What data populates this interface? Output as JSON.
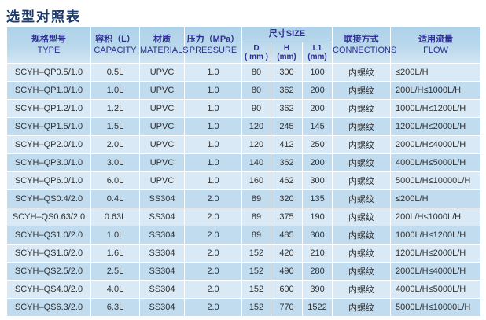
{
  "page": {
    "title": "选型对照表"
  },
  "colors": {
    "title_text": "#1a3a6e",
    "header_text": "#2e2f92",
    "header_bg_top": "#aed2e9",
    "header_bg_bottom": "#d3e6f3",
    "row_odd_bg": "#d9eaf6",
    "row_even_bg": "#c2dcef",
    "body_text": "#303030",
    "page_bg": "#ffffff"
  },
  "table": {
    "header": {
      "type": {
        "zh": "规格型号",
        "en": "TYPE"
      },
      "capacity": {
        "zh": "容积（L）",
        "en": "CAPACITY"
      },
      "materials": {
        "zh": "材质",
        "en": "MATERIALS"
      },
      "pressure": {
        "zh": "压力（MPa）",
        "en": "PRESSURE"
      },
      "size": {
        "label": "尺寸SIZE",
        "sub": [
          {
            "label": "D",
            "unit": "( mm )"
          },
          {
            "label": "H",
            "unit": "(mm)"
          },
          {
            "label": "L1",
            "unit": "(mm)"
          }
        ]
      },
      "connections": {
        "zh": "联接方式",
        "en": "CONNECTIONS"
      },
      "flow": {
        "zh": "适用流量",
        "en": "FLOW"
      }
    },
    "rows": [
      [
        "SCYH–QP0.5/1.0",
        "0.5L",
        "UPVC",
        "1.0",
        "80",
        "300",
        "100",
        "内螺纹",
        "≤200L/H"
      ],
      [
        "SCYH–QP1.0/1.0",
        "1.0L",
        "UPVC",
        "1.0",
        "80",
        "362",
        "200",
        "内螺纹",
        "200L/H≤1000L/H"
      ],
      [
        "SCYH–QP1.2/1.0",
        "1.2L",
        "UPVC",
        "1.0",
        "90",
        "362",
        "200",
        "内螺纹",
        "1000L/H≤1200L/H"
      ],
      [
        "SCYH–QP1.5/1.0",
        "1.5L",
        "UPVC",
        "1.0",
        "120",
        "245",
        "145",
        "内螺纹",
        "1200L/H≤2000L/H"
      ],
      [
        "SCYH–QP2.0/1.0",
        "2.0L",
        "UPVC",
        "1.0",
        "120",
        "412",
        "250",
        "内螺纹",
        "2000L/H≤4000L/H"
      ],
      [
        "SCYH–QP3.0/1.0",
        "3.0L",
        "UPVC",
        "1.0",
        "140",
        "362",
        "200",
        "内螺纹",
        "4000L/H≤5000L/H"
      ],
      [
        "SCYH–QP6.0/1.0",
        "6.0L",
        "UPVC",
        "1.0",
        "160",
        "462",
        "300",
        "内螺纹",
        "5000L/H≤10000L/H"
      ],
      [
        "SCYH–QS0.4/2.0",
        "0.4L",
        "SS304",
        "2.0",
        "89",
        "320",
        "135",
        "内螺纹",
        "≤200L/H"
      ],
      [
        "SCYH–QS0.63/2.0",
        "0.63L",
        "SS304",
        "2.0",
        "89",
        "375",
        "190",
        "内螺纹",
        "200L/H≤1000L/H"
      ],
      [
        "SCYH–QS1.0/2.0",
        "1.0L",
        "SS304",
        "2.0",
        "89",
        "485",
        "300",
        "内螺纹",
        "1000L/H≤1200L/H"
      ],
      [
        "SCYH–QS1.6/2.0",
        "1.6L",
        "SS304",
        "2.0",
        "152",
        "420",
        "210",
        "内螺纹",
        "1200L/H≤2000L/H"
      ],
      [
        "SCYH–QS2.5/2.0",
        "2.5L",
        "SS304",
        "2.0",
        "152",
        "490",
        "280",
        "内螺纹",
        "2000L/H≤4000L/H"
      ],
      [
        "SCYH–QS4.0/2.0",
        "4.0L",
        "SS304",
        "2.0",
        "152",
        "600",
        "390",
        "内螺纹",
        "4000L/H≤5000L/H"
      ],
      [
        "SCYH–QS6.3/2.0",
        "6.3L",
        "SS304",
        "2.0",
        "152",
        "770",
        "1522",
        "内螺纹",
        "5000L/H≤10000L/H"
      ]
    ]
  }
}
